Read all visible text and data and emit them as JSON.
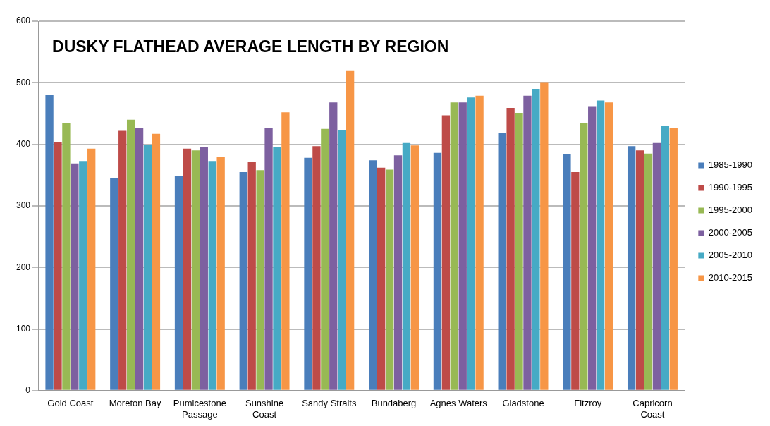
{
  "chart_data": {
    "type": "bar",
    "title": "DUSKY FLATHEAD AVERAGE LENGTH BY REGION",
    "categories": [
      "Gold Coast",
      "Moreton Bay",
      "Pumicestone Passage",
      "Sunshine Coast",
      "Sandy Straits",
      "Bundaberg",
      "Agnes Waters",
      "Gladstone",
      "Fitzroy",
      "Capricorn Coast"
    ],
    "series": [
      {
        "name": "1985-1990",
        "color": "#4a7ebb",
        "values": [
          481,
          345,
          349,
          355,
          378,
          374,
          386,
          419,
          384,
          397
        ]
      },
      {
        "name": "1990-1995",
        "color": "#be4b48",
        "values": [
          404,
          422,
          393,
          372,
          397,
          362,
          447,
          459,
          355,
          390
        ]
      },
      {
        "name": "1995-2000",
        "color": "#98b954",
        "values": [
          435,
          440,
          390,
          358,
          425,
          359,
          468,
          451,
          434,
          385
        ]
      },
      {
        "name": "2000-2005",
        "color": "#7d60a0",
        "values": [
          369,
          427,
          395,
          427,
          468,
          382,
          468,
          479,
          462,
          402
        ]
      },
      {
        "name": "2005-2010",
        "color": "#46aac5",
        "values": [
          373,
          399,
          373,
          395,
          423,
          402,
          476,
          490,
          471,
          430
        ]
      },
      {
        "name": "2010-2015",
        "color": "#f79646",
        "values": [
          393,
          417,
          380,
          452,
          520,
          398,
          479,
          501,
          468,
          427
        ]
      }
    ],
    "ylim": [
      0,
      600
    ],
    "yticks": [
      0,
      100,
      200,
      300,
      400,
      500,
      600
    ],
    "grid": "y",
    "legend": "right"
  }
}
